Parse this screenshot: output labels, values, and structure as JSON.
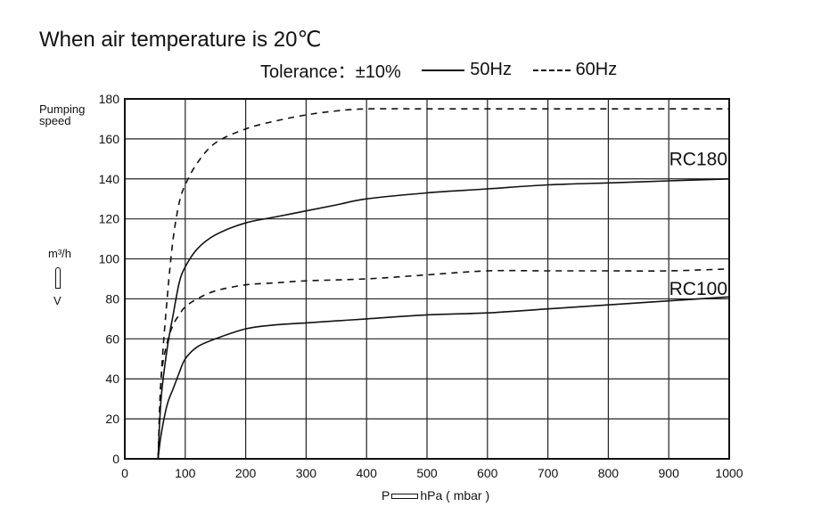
{
  "header": {
    "title": "When air temperature is 20℃",
    "tolerance": "Tolerance：±10%",
    "legend_50": "50Hz",
    "legend_60": "60Hz"
  },
  "axis": {
    "ylabel_line1": "Pumping",
    "ylabel_line2": "speed",
    "yunit": "m³/h",
    "yunit_v": "V",
    "xlabel_p": "P",
    "xlabel_unit": "hPa ( mbar )"
  },
  "chart_data": {
    "type": "line",
    "xlabel": "P hPa ( mbar )",
    "ylabel": "Pumping speed m³/h",
    "xlim": [
      0,
      1000
    ],
    "ylim": [
      0,
      180
    ],
    "xticks": [
      0,
      100,
      200,
      300,
      400,
      500,
      600,
      700,
      800,
      900,
      1000
    ],
    "yticks": [
      0,
      20,
      40,
      60,
      80,
      100,
      120,
      140,
      160,
      180
    ],
    "grid": true,
    "legend_position": "top",
    "series": [
      {
        "name": "RC180 60Hz",
        "label": "RC180",
        "style": "dashed",
        "x": [
          55,
          60,
          70,
          80,
          90,
          100,
          120,
          150,
          200,
          250,
          300,
          350,
          400,
          500,
          600,
          700,
          800,
          900,
          1000
        ],
        "y": [
          0,
          40,
          80,
          110,
          128,
          137,
          148,
          158,
          165,
          169,
          172,
          174,
          175,
          175,
          175,
          175,
          175,
          175,
          175
        ]
      },
      {
        "name": "RC180 50Hz",
        "label": "RC180",
        "style": "solid",
        "x": [
          55,
          60,
          70,
          80,
          90,
          100,
          120,
          150,
          200,
          250,
          300,
          350,
          400,
          500,
          600,
          700,
          800,
          900,
          1000
        ],
        "y": [
          0,
          30,
          55,
          72,
          88,
          96,
          105,
          112,
          118,
          121,
          124,
          127,
          130,
          133,
          135,
          137,
          138,
          139,
          140
        ]
      },
      {
        "name": "RC100 60Hz",
        "label": "RC100",
        "style": "dashed",
        "x": [
          55,
          60,
          70,
          80,
          90,
          100,
          120,
          150,
          200,
          250,
          300,
          400,
          500,
          600,
          700,
          800,
          900,
          1000
        ],
        "y": [
          0,
          40,
          58,
          67,
          72,
          76,
          80,
          84,
          87,
          88,
          89,
          90,
          92,
          94,
          94,
          94,
          94,
          95
        ]
      },
      {
        "name": "RC100 50Hz",
        "label": "RC100",
        "style": "solid",
        "x": [
          55,
          60,
          70,
          80,
          90,
          100,
          120,
          150,
          200,
          250,
          300,
          400,
          500,
          600,
          700,
          800,
          900,
          1000
        ],
        "y": [
          0,
          12,
          27,
          35,
          43,
          50,
          56,
          60,
          65,
          67,
          68,
          70,
          72,
          73,
          75,
          77,
          79,
          81
        ]
      }
    ],
    "annotations": [
      "RC180",
      "RC100"
    ]
  }
}
